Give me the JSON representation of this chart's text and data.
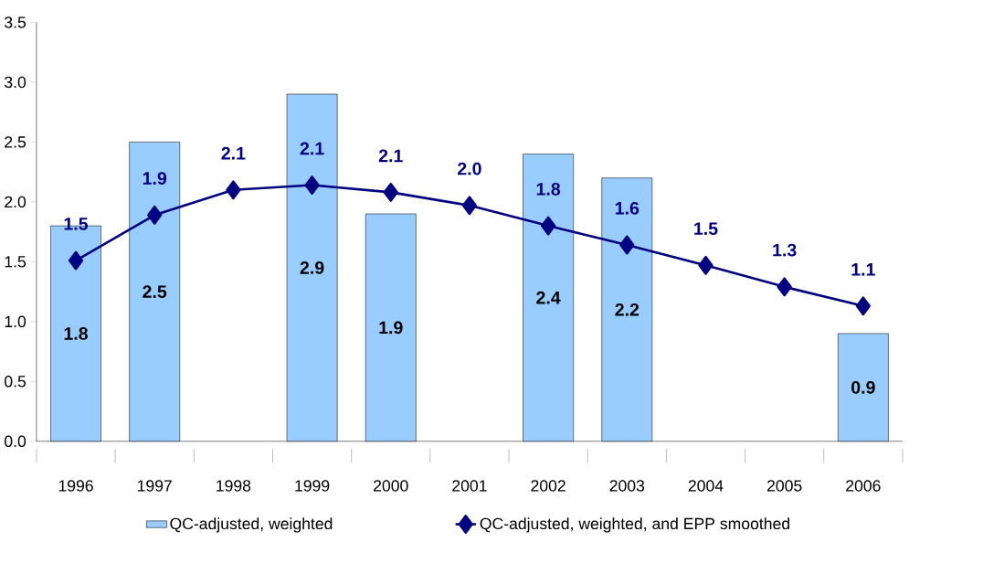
{
  "chart_data": {
    "type": "bar",
    "categories": [
      "1996",
      "1997",
      "1998",
      "1999",
      "2000",
      "2001",
      "2002",
      "2003",
      "2004",
      "2005",
      "2006"
    ],
    "series": [
      {
        "name": "QC-adjusted, weighted",
        "color": "#99ccff",
        "values": [
          1.8,
          2.5,
          null,
          2.9,
          1.9,
          null,
          2.4,
          2.2,
          null,
          null,
          0.9
        ],
        "value_labels": [
          "1.8",
          "2.5",
          null,
          "2.9",
          "1.9",
          null,
          "2.4",
          "2.2",
          null,
          null,
          "0.9"
        ]
      },
      {
        "name": "QC-adjusted, weighted, and EPP smoothed",
        "type": "line",
        "color": "#000080",
        "marker": "diamond",
        "values": [
          1.51,
          1.89,
          2.1,
          2.14,
          2.08,
          1.97,
          1.8,
          1.64,
          1.47,
          1.29,
          1.13
        ],
        "value_labels": [
          "1.5",
          "1.9",
          "2.1",
          "2.1",
          "2.1",
          "2.0",
          "1.8",
          "1.6",
          "1.5",
          "1.3",
          "1.1"
        ]
      }
    ],
    "ylim": [
      0,
      3.5
    ],
    "yticks": [
      {
        "value": 0,
        "label": "0.0"
      },
      {
        "value": 0.5,
        "label": "0.5"
      },
      {
        "value": 1,
        "label": "1.0"
      },
      {
        "value": 1.5,
        "label": "1.5"
      },
      {
        "value": 2,
        "label": "2.0"
      },
      {
        "value": 2.5,
        "label": "2.5"
      },
      {
        "value": 3,
        "label": "3.0"
      },
      {
        "value": 3.5,
        "label": "3.5"
      }
    ],
    "legend": "bottom"
  }
}
